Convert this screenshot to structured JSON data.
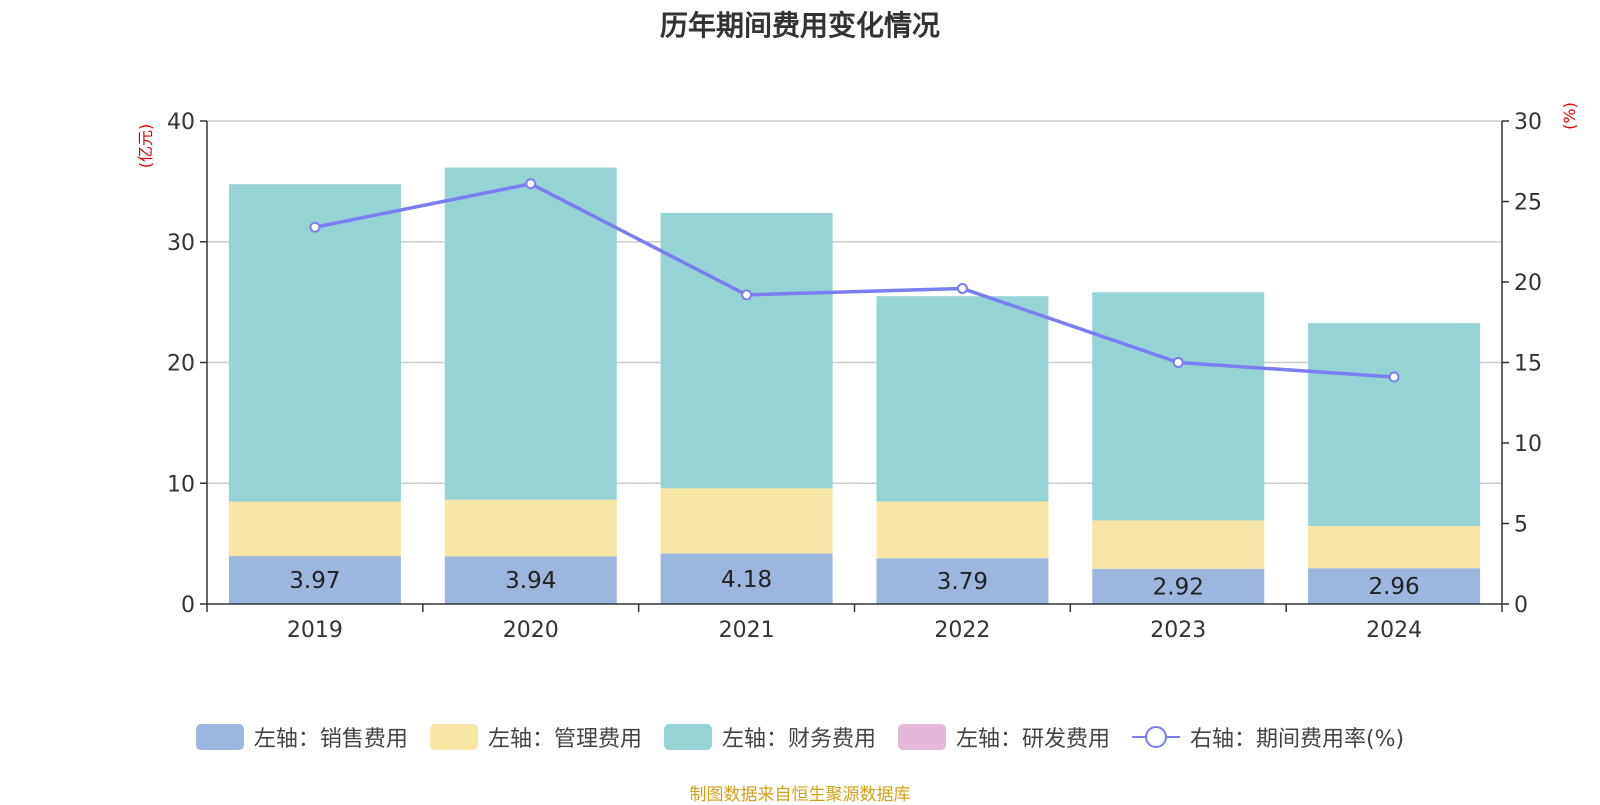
{
  "title": "历年期间费用变化情况",
  "source": "制图数据来自恒生聚源数据库",
  "colors": {
    "sales": "#9bb7e0",
    "admin": "#f7e6a6",
    "finance": "#96d3d4",
    "rd": "#e6b8d8",
    "rate": "#7b7ef0",
    "axis_unit": "#e00000"
  },
  "legend": [
    {
      "label": "左轴：销售费用",
      "color_key": "sales",
      "kind": "bar"
    },
    {
      "label": "左轴：管理费用",
      "color_key": "admin",
      "kind": "bar"
    },
    {
      "label": "左轴：财务费用",
      "color_key": "finance",
      "kind": "bar"
    },
    {
      "label": "左轴：研发费用",
      "color_key": "rd",
      "kind": "bar"
    },
    {
      "label": "右轴：期间费用率(%)",
      "color_key": "rate",
      "kind": "line"
    }
  ],
  "chart_data": {
    "type": "bar",
    "stacked": true,
    "categories": [
      "2019",
      "2020",
      "2021",
      "2022",
      "2023",
      "2024"
    ],
    "series": [
      {
        "name": "左轴：销售费用",
        "axis": "left",
        "values": [
          3.97,
          3.94,
          4.18,
          3.79,
          2.92,
          2.96
        ],
        "labels": [
          "3.97",
          "3.94",
          "4.18",
          "3.79",
          "2.92",
          "2.96"
        ]
      },
      {
        "name": "左轴：管理费用",
        "axis": "left",
        "values": [
          4.5,
          4.7,
          5.4,
          4.7,
          4.0,
          3.5
        ]
      },
      {
        "name": "左轴：财务费用",
        "axis": "left",
        "values": [
          26.3,
          27.5,
          22.8,
          17.0,
          18.9,
          16.8
        ]
      },
      {
        "name": "左轴：研发费用",
        "axis": "left",
        "values": [
          0,
          0,
          0,
          0,
          0,
          0
        ]
      },
      {
        "name": "右轴：期间费用率(%)",
        "axis": "right",
        "type": "line",
        "values": [
          23.4,
          26.1,
          19.2,
          19.6,
          15.0,
          14.1
        ]
      }
    ],
    "left_axis": {
      "unit": "(亿元)",
      "min": 0,
      "max": 40,
      "ticks": [
        0,
        10,
        20,
        30,
        40
      ]
    },
    "right_axis": {
      "unit": "(%)",
      "min": 0,
      "max": 30,
      "ticks": [
        0,
        5,
        10,
        15,
        20,
        25,
        30
      ]
    },
    "grid": true,
    "legend_position": "bottom"
  }
}
